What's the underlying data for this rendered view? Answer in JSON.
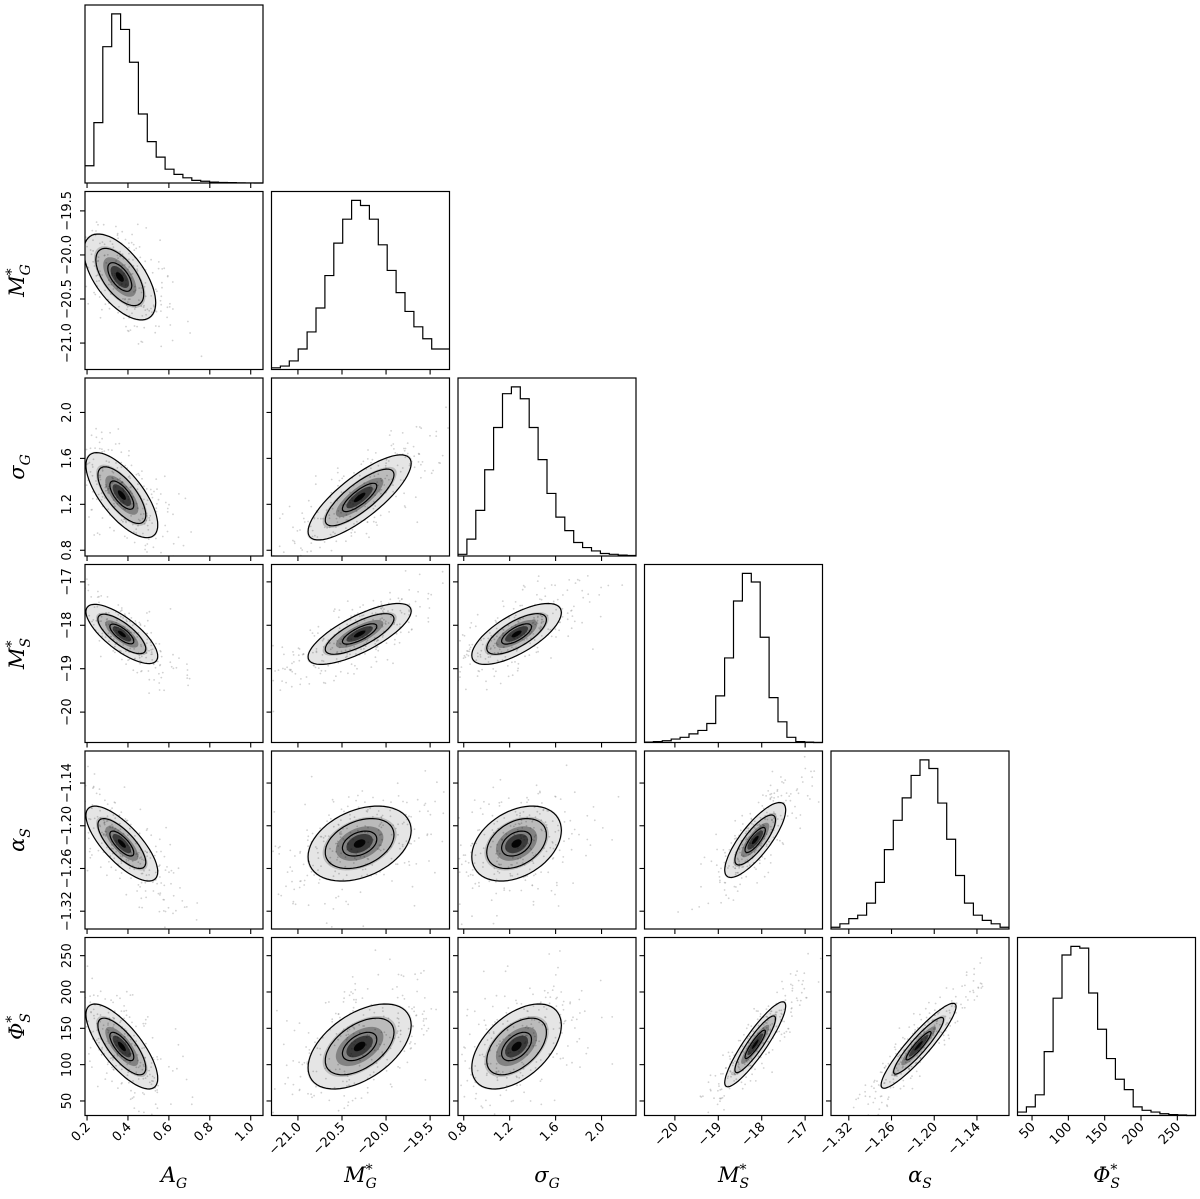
{
  "chart_data": {
    "type": "corner",
    "title": "",
    "parameters": [
      {
        "key": "A_G",
        "label": "A_G",
        "label_text": "A",
        "label_sub": "G",
        "label_sup": "",
        "greek": false,
        "range": [
          0.19,
          1.06
        ],
        "ticks": [
          0.2,
          0.4,
          0.6,
          0.8,
          1.0
        ],
        "tick_labels": [
          "0.2",
          "0.4",
          "0.6",
          "0.8",
          "1.0"
        ]
      },
      {
        "key": "M_G",
        "label": "M*_G",
        "label_text": "M",
        "label_sub": "G",
        "label_sup": "*",
        "greek": false,
        "range": [
          -21.3,
          -19.28
        ],
        "ticks": [
          -21.0,
          -20.5,
          -20.0,
          -19.5
        ],
        "tick_labels": [
          "−21.0",
          "−20.5",
          "−20.0",
          "−19.5"
        ]
      },
      {
        "key": "sigma_G",
        "label": "σ_G",
        "label_text": "σ",
        "label_sub": "G",
        "label_sup": "",
        "greek": true,
        "range": [
          0.75,
          2.3
        ],
        "ticks": [
          0.8,
          1.2,
          1.6,
          2.0
        ],
        "tick_labels": [
          "0.8",
          "1.2",
          "1.6",
          "2.0"
        ]
      },
      {
        "key": "M_S",
        "label": "M*_S",
        "label_text": "M",
        "label_sub": "S",
        "label_sup": "*",
        "greek": false,
        "range": [
          -20.7,
          -16.6
        ],
        "ticks": [
          -20,
          -19,
          -18,
          -17
        ],
        "tick_labels": [
          "−20",
          "−19",
          "−18",
          "−17"
        ]
      },
      {
        "key": "alpha_S",
        "label": "α_S",
        "label_text": "α",
        "label_sub": "S",
        "label_sup": "",
        "greek": true,
        "range": [
          -1.345,
          -1.095
        ],
        "ticks": [
          -1.32,
          -1.26,
          -1.2,
          -1.14
        ],
        "tick_labels": [
          "−1.32",
          "−1.26",
          "−1.20",
          "−1.14"
        ]
      },
      {
        "key": "Phi_S",
        "label": "Φ*_S",
        "label_text": "Φ",
        "label_sub": "S",
        "label_sup": "*",
        "greek": true,
        "range": [
          30,
          275
        ],
        "ticks": [
          50,
          100,
          150,
          200,
          250
        ],
        "tick_labels": [
          "50",
          "100",
          "150",
          "200",
          "250"
        ]
      }
    ],
    "histograms": [
      {
        "bins": [
          0.19,
          0.2335,
          0.277,
          0.3205,
          0.364,
          0.4075,
          0.451,
          0.4945,
          0.538,
          0.5815,
          0.625,
          0.6685,
          0.712,
          0.7555,
          0.799,
          0.8425,
          0.886,
          0.9295,
          0.973,
          1.0165,
          1.06
        ],
        "counts": [
          0.1,
          0.35,
          0.79,
          0.98,
          0.89,
          0.7,
          0.4,
          0.24,
          0.15,
          0.08,
          0.05,
          0.03,
          0.015,
          0.01,
          0.005,
          0.003,
          0.002,
          0.001,
          0.0005,
          0
        ]
      },
      {
        "bins": [
          -21.3,
          -21.199,
          -21.098,
          -20.997,
          -20.896,
          -20.795,
          -20.694,
          -20.593,
          -20.492,
          -20.391,
          -20.29,
          -20.189,
          -20.088,
          -19.987,
          -19.886,
          -19.785,
          -19.684,
          -19.583,
          -19.482,
          -19.381,
          -19.28
        ],
        "counts": [
          0.01,
          0.02,
          0.05,
          0.12,
          0.22,
          0.36,
          0.55,
          0.74,
          0.88,
          0.99,
          0.96,
          0.88,
          0.73,
          0.58,
          0.45,
          0.34,
          0.25,
          0.18,
          0.12,
          0.12
        ]
      },
      {
        "bins": [
          0.75,
          0.8275,
          0.905,
          0.9825,
          1.06,
          1.1375,
          1.215,
          1.2925,
          1.37,
          1.4475,
          1.525,
          1.6025,
          1.68,
          1.7575,
          1.835,
          1.9125,
          1.99,
          2.0675,
          2.145,
          2.2225,
          2.3
        ],
        "counts": [
          0.01,
          0.1,
          0.27,
          0.51,
          0.76,
          0.96,
          1.0,
          0.93,
          0.76,
          0.57,
          0.37,
          0.23,
          0.15,
          0.08,
          0.05,
          0.03,
          0.015,
          0.01,
          0.005,
          0.003
        ]
      },
      {
        "bins": [
          -20.7,
          -20.495,
          -20.29,
          -20.085,
          -19.88,
          -19.675,
          -19.47,
          -19.265,
          -19.06,
          -18.855,
          -18.65,
          -18.445,
          -18.24,
          -18.035,
          -17.83,
          -17.625,
          -17.42,
          -17.215,
          -17.01,
          -16.805,
          -16.6
        ],
        "counts": [
          0.002,
          0.005,
          0.01,
          0.02,
          0.03,
          0.05,
          0.07,
          0.11,
          0.27,
          0.49,
          0.82,
          0.98,
          0.93,
          0.61,
          0.26,
          0.12,
          0.03,
          0.005,
          0.002,
          0
        ]
      },
      {
        "bins": [
          -1.345,
          -1.3325,
          -1.32,
          -1.3075,
          -1.295,
          -1.2825,
          -1.27,
          -1.2575,
          -1.245,
          -1.2325,
          -1.22,
          -1.2075,
          -1.195,
          -1.1825,
          -1.17,
          -1.1575,
          -1.145,
          -1.1325,
          -1.12,
          -1.1075,
          -1.095
        ],
        "counts": [
          0.01,
          0.03,
          0.06,
          0.08,
          0.15,
          0.27,
          0.46,
          0.63,
          0.76,
          0.89,
          0.98,
          0.93,
          0.73,
          0.52,
          0.31,
          0.15,
          0.08,
          0.05,
          0.03,
          0.01
        ]
      },
      {
        "bins": [
          30,
          42.25,
          54.5,
          66.75,
          79,
          91.25,
          103.5,
          115.75,
          128,
          140.25,
          152.5,
          164.75,
          177,
          189.25,
          201.5,
          213.75,
          226,
          238.25,
          250.5,
          262.75,
          275
        ],
        "counts": [
          0.02,
          0.05,
          0.12,
          0.37,
          0.68,
          0.93,
          0.98,
          0.97,
          0.71,
          0.5,
          0.33,
          0.21,
          0.15,
          0.05,
          0.03,
          0.02,
          0.01,
          0.005,
          0.003,
          0
        ]
      }
    ],
    "pair_summaries": [
      {
        "x": "A_G",
        "y": "M_G",
        "mean": [
          0.36,
          -20.25
        ],
        "sd": [
          0.09,
          0.25
        ],
        "corr": -0.6
      },
      {
        "x": "A_G",
        "y": "sigma_G",
        "mean": [
          0.37,
          1.28
        ],
        "sd": [
          0.09,
          0.19
        ],
        "corr": -0.7
      },
      {
        "x": "M_G",
        "y": "sigma_G",
        "mean": [
          -20.3,
          1.26
        ],
        "sd": [
          0.3,
          0.19
        ],
        "corr": 0.8
      },
      {
        "x": "A_G",
        "y": "M_S",
        "mean": [
          0.37,
          -18.2
        ],
        "sd": [
          0.09,
          0.35
        ],
        "corr": -0.75
      },
      {
        "x": "M_G",
        "y": "M_S",
        "mean": [
          -20.3,
          -18.2
        ],
        "sd": [
          0.3,
          0.36
        ],
        "corr": 0.75
      },
      {
        "x": "sigma_G",
        "y": "M_S",
        "mean": [
          1.26,
          -18.2
        ],
        "sd": [
          0.2,
          0.36
        ],
        "corr": 0.7
      },
      {
        "x": "A_G",
        "y": "alpha_S",
        "mean": [
          0.37,
          -1.225
        ],
        "sd": [
          0.09,
          0.027
        ],
        "corr": -0.75
      },
      {
        "x": "M_G",
        "y": "alpha_S",
        "mean": [
          -20.3,
          -1.225
        ],
        "sd": [
          0.3,
          0.027
        ],
        "corr": 0.35
      },
      {
        "x": "sigma_G",
        "y": "alpha_S",
        "mean": [
          1.26,
          -1.225
        ],
        "sd": [
          0.2,
          0.027
        ],
        "corr": 0.35
      },
      {
        "x": "M_S",
        "y": "alpha_S",
        "mean": [
          -18.15,
          -1.22
        ],
        "sd": [
          0.36,
          0.027
        ],
        "corr": 0.8
      },
      {
        "x": "A_G",
        "y": "Phi_S",
        "mean": [
          0.37,
          125
        ],
        "sd": [
          0.09,
          30
        ],
        "corr": -0.75
      },
      {
        "x": "M_G",
        "y": "Phi_S",
        "mean": [
          -20.3,
          125
        ],
        "sd": [
          0.3,
          30
        ],
        "corr": 0.5
      },
      {
        "x": "sigma_G",
        "y": "Phi_S",
        "mean": [
          1.26,
          125
        ],
        "sd": [
          0.2,
          30
        ],
        "corr": 0.5
      },
      {
        "x": "M_S",
        "y": "Phi_S",
        "mean": [
          -18.15,
          128
        ],
        "sd": [
          0.36,
          30
        ],
        "corr": 0.9
      },
      {
        "x": "alpha_S",
        "y": "Phi_S",
        "mean": [
          -1.222,
          126
        ],
        "sd": [
          0.027,
          30
        ],
        "corr": 0.92
      }
    ],
    "colors": {
      "hist": "#000000",
      "contour": "#000000",
      "density": "#000000",
      "points": "#9a9a9a",
      "frame": "#000000"
    },
    "grid": false,
    "legend": "none"
  }
}
